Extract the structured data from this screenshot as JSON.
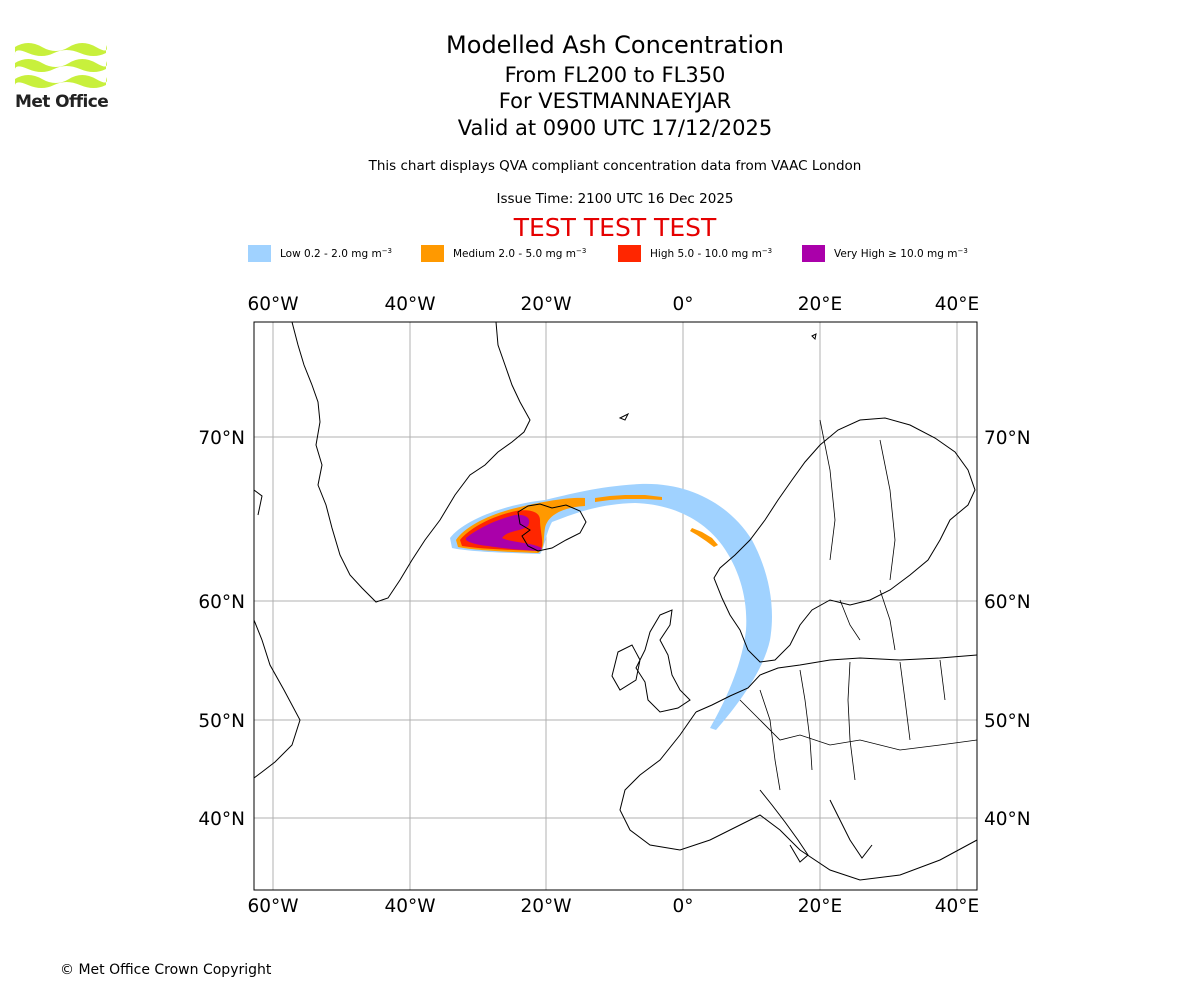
{
  "logo": {
    "name": "Met Office",
    "color": "#c8f03c"
  },
  "header": {
    "title": "Modelled Ash Concentration",
    "levels": "From FL200 to FL350",
    "volcano": "For VESTMANNAEYJAR",
    "valid": "Valid at 0900 UTC 17/12/2025",
    "description": "This chart displays QVA compliant concentration data from VAAC London",
    "issue": "Issue Time: 2100 UTC 16 Dec 2025",
    "test_banner": "TEST TEST TEST"
  },
  "legend": [
    {
      "label": "Low 0.2 - 2.0 mg m",
      "unit_exp": "−3",
      "color": "#a0d2ff"
    },
    {
      "label": "Medium 2.0 - 5.0 mg m",
      "unit_exp": "−3",
      "color": "#ff9900"
    },
    {
      "label": "High 5.0 - 10.0 mg m",
      "unit_exp": "−3",
      "color": "#ff2600"
    },
    {
      "label": "Very High  ≥  10.0 mg m",
      "unit_exp": "−3",
      "color": "#aa00aa"
    }
  ],
  "map": {
    "lon_ticks": [
      "60°W",
      "40°W",
      "20°W",
      "0°",
      "20°E",
      "40°E"
    ],
    "lon_values": [
      -60,
      -40,
      -20,
      0,
      20,
      40
    ],
    "lat_ticks": [
      "70°N",
      "60°N",
      "50°N",
      "40°N"
    ],
    "lat_values": [
      70,
      60,
      50,
      40
    ],
    "lon_range": [
      -63,
      43
    ],
    "lat_range": [
      33,
      77
    ]
  },
  "footer": {
    "copyright": "© Met Office Crown Copyright"
  }
}
